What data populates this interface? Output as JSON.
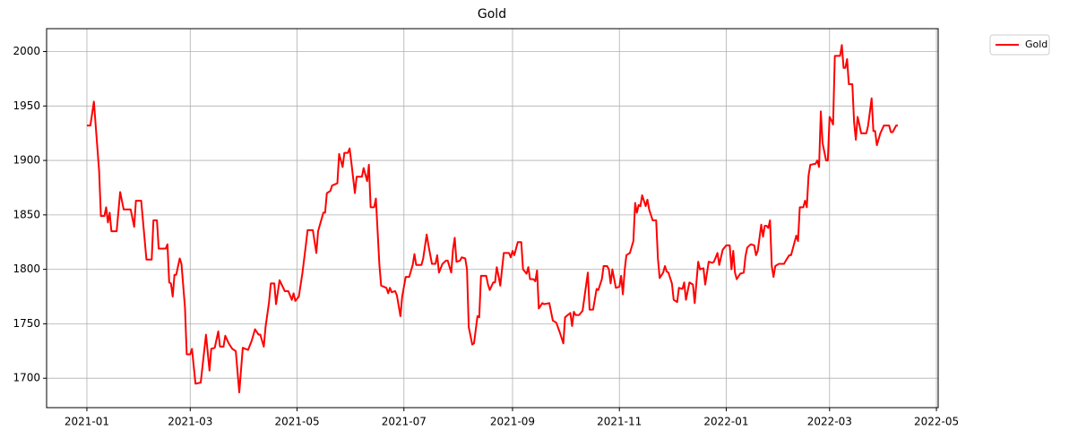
{
  "chart_data": {
    "type": "line",
    "title": "Gold",
    "x": [
      0,
      2,
      4,
      7,
      8,
      10,
      11,
      12,
      13,
      14,
      17,
      19,
      21,
      25,
      27,
      28,
      31,
      34,
      37,
      38,
      40,
      41,
      45,
      46,
      47,
      48,
      49,
      50,
      51,
      53,
      54,
      56,
      57,
      59,
      60,
      62,
      65,
      68,
      70,
      71,
      73,
      75,
      76,
      78,
      79,
      81,
      83,
      85,
      87,
      89,
      92,
      94,
      96,
      98,
      99,
      101,
      102,
      104,
      105,
      107,
      108,
      110,
      113,
      115,
      117,
      118,
      119,
      121,
      123,
      125,
      126,
      129,
      131,
      132,
      135,
      136,
      137,
      139,
      140,
      143,
      144,
      146,
      147,
      149,
      150,
      151,
      153,
      154,
      157,
      158,
      160,
      161,
      162,
      164,
      165,
      167,
      168,
      171,
      172,
      173,
      174,
      176,
      177,
      179,
      180,
      182,
      184,
      186,
      187,
      188,
      191,
      192,
      194,
      195,
      197,
      199,
      200,
      201,
      203,
      205,
      206,
      208,
      209,
      210,
      211,
      213,
      214,
      216,
      217,
      218,
      220,
      221,
      223,
      224,
      225,
      228,
      229,
      230,
      232,
      233,
      234,
      235,
      236,
      238,
      241,
      242,
      243,
      244,
      246,
      248,
      249,
      251,
      252,
      253,
      255,
      256,
      257,
      258,
      260,
      261,
      264,
      266,
      268,
      270,
      272,
      273,
      276,
      277,
      278,
      279,
      281,
      283,
      286,
      287,
      289,
      291,
      292,
      294,
      295,
      297,
      298,
      299,
      300,
      302,
      304,
      305,
      306,
      307,
      308,
      310,
      312,
      313,
      314,
      315,
      316,
      317,
      319,
      320,
      321,
      323,
      325,
      326,
      327,
      329,
      330,
      331,
      332,
      334,
      335,
      337,
      338,
      340,
      341,
      342,
      344,
      346,
      347,
      349,
      350,
      352,
      353,
      355,
      357,
      358,
      360,
      361,
      363,
      365,
      367,
      368,
      369,
      370,
      371,
      373,
      375,
      376,
      377,
      379,
      381,
      382,
      383,
      385,
      386,
      387,
      388,
      389,
      390,
      391,
      392,
      393,
      395,
      398,
      399,
      401,
      402,
      404,
      405,
      406,
      407,
      409,
      410,
      411,
      412,
      413,
      416,
      417,
      418,
      419,
      420,
      422,
      423,
      424,
      425,
      426,
      427,
      430,
      431,
      432,
      433,
      434,
      435,
      437,
      438,
      439,
      440,
      441,
      442,
      445,
      446,
      448,
      449,
      450,
      451,
      453,
      455,
      457,
      458,
      459,
      460,
      462,
      463
    ],
    "series": [
      {
        "name": "Gold",
        "color": "#ff0000",
        "values": [
          1932,
          1932,
          1954,
          1890,
          1849,
          1849,
          1857,
          1843,
          1852,
          1835,
          1835,
          1871,
          1855,
          1855,
          1839,
          1863,
          1863,
          1809,
          1809,
          1845,
          1845,
          1819,
          1819,
          1823,
          1788,
          1787,
          1775,
          1795,
          1795,
          1810,
          1805,
          1765,
          1722,
          1722,
          1727,
          1695,
          1696,
          1740,
          1707,
          1727,
          1728,
          1743,
          1729,
          1729,
          1739,
          1732,
          1727,
          1725,
          1687,
          1728,
          1726,
          1734,
          1745,
          1740,
          1740,
          1729,
          1747,
          1770,
          1787,
          1787,
          1768,
          1790,
          1780,
          1780,
          1772,
          1778,
          1771,
          1775,
          1796,
          1822,
          1836,
          1836,
          1815,
          1835,
          1852,
          1852,
          1870,
          1872,
          1877,
          1879,
          1906,
          1894,
          1907,
          1907,
          1911,
          1898,
          1870,
          1885,
          1885,
          1893,
          1881,
          1896,
          1857,
          1857,
          1865,
          1804,
          1785,
          1783,
          1778,
          1783,
          1779,
          1780,
          1776,
          1757,
          1775,
          1793,
          1793,
          1804,
          1814,
          1804,
          1804,
          1810,
          1832,
          1822,
          1805,
          1805,
          1813,
          1797,
          1805,
          1808,
          1808,
          1797,
          1818,
          1829,
          1807,
          1808,
          1811,
          1810,
          1800,
          1747,
          1731,
          1732,
          1757,
          1756,
          1794,
          1794,
          1786,
          1781,
          1788,
          1788,
          1802,
          1794,
          1785,
          1815,
          1815,
          1811,
          1817,
          1813,
          1825,
          1825,
          1800,
          1796,
          1802,
          1791,
          1791,
          1789,
          1799,
          1764,
          1769,
          1768,
          1769,
          1753,
          1751,
          1742,
          1732,
          1756,
          1760,
          1748,
          1761,
          1758,
          1758,
          1762,
          1797,
          1763,
          1763,
          1782,
          1781,
          1791,
          1803,
          1803,
          1800,
          1787,
          1800,
          1783,
          1784,
          1794,
          1777,
          1799,
          1813,
          1815,
          1826,
          1861,
          1852,
          1859,
          1858,
          1868,
          1858,
          1864,
          1855,
          1845,
          1845,
          1810,
          1792,
          1797,
          1803,
          1798,
          1797,
          1787,
          1772,
          1770,
          1783,
          1782,
          1788,
          1772,
          1788,
          1786,
          1769,
          1807,
          1800,
          1801,
          1786,
          1807,
          1806,
          1807,
          1815,
          1804,
          1818,
          1822,
          1822,
          1800,
          1817,
          1797,
          1791,
          1796,
          1797,
          1812,
          1820,
          1823,
          1822,
          1813,
          1817,
          1841,
          1830,
          1840,
          1840,
          1838,
          1845,
          1803,
          1793,
          1803,
          1805,
          1805,
          1808,
          1813,
          1813,
          1825,
          1831,
          1826,
          1857,
          1857,
          1863,
          1857,
          1886,
          1896,
          1897,
          1900,
          1894,
          1945,
          1916,
          1900,
          1900,
          1940,
          1937,
          1933,
          1996,
          1996,
          2006,
          1985,
          1985,
          1993,
          1970,
          1970,
          1935,
          1919,
          1940,
          1933,
          1925,
          1925,
          1932,
          1957,
          1927,
          1927,
          1914,
          1925,
          1932,
          1932,
          1932,
          1926,
          1926,
          1932,
          1932
        ]
      }
    ],
    "xlim": [
      -23,
      486
    ],
    "ylim": [
      1673,
      2021
    ],
    "xticks": [
      {
        "value": 0,
        "label": "2021-01"
      },
      {
        "value": 59,
        "label": "2021-03"
      },
      {
        "value": 120,
        "label": "2021-05"
      },
      {
        "value": 181,
        "label": "2021-07"
      },
      {
        "value": 243,
        "label": "2021-09"
      },
      {
        "value": 304,
        "label": "2021-11"
      },
      {
        "value": 365,
        "label": "2022-01"
      },
      {
        "value": 424,
        "label": "2022-03"
      },
      {
        "value": 485,
        "label": "2022-05"
      }
    ],
    "yticks": [
      1700,
      1750,
      1800,
      1850,
      1900,
      1950,
      2000
    ],
    "grid": true,
    "legend": "outside-upper-right"
  }
}
